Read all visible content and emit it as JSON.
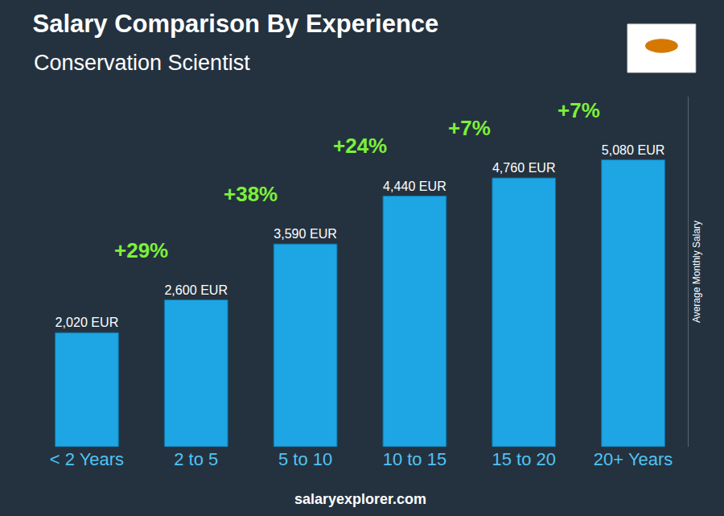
{
  "chart_data": {
    "type": "bar",
    "title": "Salary Comparison By Experience",
    "subtitle": "Conservation Scientist",
    "y_label": "Average Monthly Salary",
    "categories": [
      "< 2 Years",
      "2 to 5",
      "5 to 10",
      "10 to 15",
      "15 to 20",
      "20+ Years"
    ],
    "values": [
      2020,
      2600,
      3590,
      4440,
      4760,
      5080
    ],
    "value_labels": [
      "2,020 EUR",
      "2,600 EUR",
      "3,590 EUR",
      "4,440 EUR",
      "4,760 EUR",
      "5,080 EUR"
    ],
    "annotations": [
      "+29%",
      "+38%",
      "+24%",
      "+7%",
      "+7%"
    ],
    "source": "salaryexplorer.com",
    "color": "#1ea5e3",
    "ylim": [
      0,
      6200
    ],
    "grid": false,
    "data_labels": true,
    "tick_labels": "x"
  }
}
